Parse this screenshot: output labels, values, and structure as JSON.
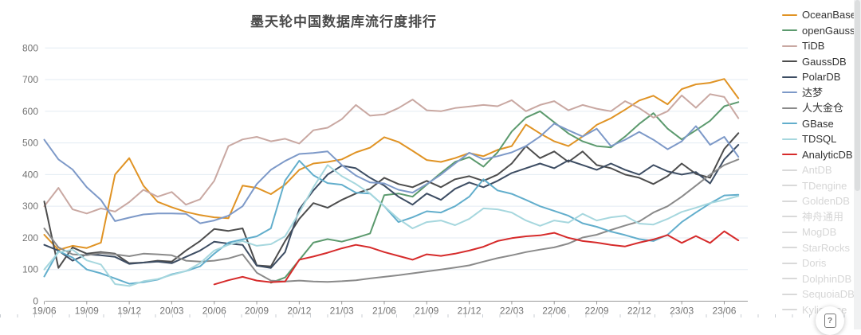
{
  "page": {
    "background": "#ffffff"
  },
  "axis": {
    "line_color": "#999999",
    "label_color": "#737373",
    "grid_color": "#e3ebf3"
  },
  "legend": {
    "disabled_color": "#d9d9d9",
    "active_text_color": "#333333",
    "disabled_text_color": "#d6d6d6"
  },
  "help_button": {
    "label": "?"
  },
  "chart_data": {
    "type": "line",
    "title": "墨天轮中国数据库流行度排行",
    "xlabel": "",
    "ylabel": "",
    "ylim": [
      0,
      800
    ],
    "y_ticks": [
      0,
      100,
      200,
      300,
      400,
      500,
      600,
      700,
      800
    ],
    "grid": true,
    "legend_position": "right",
    "x_tick_every": 3,
    "x_months": [
      "19/06",
      "19/07",
      "19/08",
      "19/09",
      "19/10",
      "19/11",
      "19/12",
      "20/01",
      "20/02",
      "20/03",
      "20/04",
      "20/05",
      "20/06",
      "20/07",
      "20/08",
      "20/09",
      "20/10",
      "20/11",
      "20/12",
      "21/01",
      "21/02",
      "21/03",
      "21/04",
      "21/05",
      "21/06",
      "21/07",
      "21/08",
      "21/09",
      "21/10",
      "21/11",
      "21/12",
      "22/01",
      "22/02",
      "22/03",
      "22/04",
      "22/05",
      "22/06",
      "22/07",
      "22/08",
      "22/09",
      "22/10",
      "22/11",
      "22/12",
      "23/01",
      "23/02",
      "23/03",
      "23/04",
      "23/05",
      "23/06",
      "23/07"
    ],
    "series": [
      {
        "name": "OceanBase",
        "color": "#e09324",
        "values": [
          210,
          162,
          175,
          168,
          185,
          400,
          452,
          365,
          314,
          297,
          282,
          272,
          265,
          262,
          365,
          358,
          338,
          368,
          415,
          435,
          440,
          448,
          470,
          485,
          518,
          503,
          475,
          446,
          440,
          452,
          468,
          458,
          478,
          490,
          558,
          530,
          505,
          490,
          520,
          557,
          578,
          605,
          634,
          649,
          622,
          670,
          685,
          690,
          702,
          641
        ]
      },
      {
        "name": "openGauss",
        "color": "#5c9a6e",
        "values": [
          null,
          null,
          null,
          null,
          null,
          null,
          null,
          null,
          null,
          null,
          null,
          null,
          null,
          null,
          null,
          null,
          58,
          75,
          130,
          185,
          196,
          188,
          200,
          214,
          335,
          340,
          330,
          368,
          405,
          440,
          455,
          425,
          470,
          536,
          580,
          600,
          565,
          530,
          505,
          490,
          486,
          520,
          560,
          594,
          545,
          511,
          540,
          570,
          616,
          629
        ]
      },
      {
        "name": "TiDB",
        "color": "#c9a8a2",
        "values": [
          300,
          358,
          290,
          277,
          293,
          283,
          313,
          352,
          330,
          345,
          305,
          322,
          380,
          490,
          511,
          519,
          505,
          513,
          498,
          540,
          548,
          575,
          620,
          586,
          590,
          610,
          637,
          603,
          600,
          610,
          615,
          620,
          616,
          635,
          600,
          620,
          632,
          603,
          620,
          608,
          600,
          632,
          610,
          580,
          600,
          650,
          611,
          654,
          645,
          578
        ]
      },
      {
        "name": "GaussDB",
        "color": "#4d4d4d",
        "values": [
          315,
          105,
          170,
          150,
          155,
          150,
          120,
          122,
          128,
          125,
          160,
          190,
          228,
          222,
          230,
          113,
          110,
          190,
          260,
          310,
          295,
          320,
          340,
          355,
          390,
          370,
          360,
          380,
          360,
          385,
          395,
          380,
          400,
          435,
          490,
          452,
          473,
          440,
          473,
          430,
          420,
          400,
          390,
          370,
          395,
          435,
          402,
          390,
          481,
          531
        ]
      },
      {
        "name": "PolarDB",
        "color": "#3d4d63",
        "values": [
          178,
          160,
          128,
          148,
          145,
          140,
          118,
          122,
          125,
          120,
          140,
          160,
          188,
          182,
          178,
          112,
          105,
          155,
          290,
          350,
          400,
          428,
          420,
          390,
          365,
          330,
          305,
          340,
          320,
          355,
          375,
          360,
          380,
          405,
          420,
          435,
          420,
          445,
          430,
          415,
          435,
          415,
          400,
          430,
          410,
          400,
          408,
          372,
          448,
          494
        ]
      },
      {
        "name": "达梦",
        "color": "#7d99c8",
        "values": [
          510,
          448,
          416,
          360,
          320,
          253,
          264,
          274,
          277,
          277,
          276,
          246,
          255,
          270,
          300,
          370,
          415,
          443,
          465,
          468,
          473,
          430,
          397,
          375,
          372,
          352,
          343,
          370,
          400,
          435,
          469,
          448,
          458,
          470,
          490,
          520,
          561,
          540,
          520,
          545,
          490,
          510,
          535,
          510,
          480,
          505,
          553,
          494,
          519,
          456
        ]
      },
      {
        "name": "人大金仓",
        "color": "#8a8a8a",
        "values": [
          230,
          170,
          148,
          145,
          152,
          148,
          142,
          150,
          148,
          145,
          128,
          125,
          128,
          135,
          148,
          90,
          65,
          62,
          65,
          62,
          61,
          63,
          66,
          72,
          77,
          82,
          88,
          94,
          100,
          106,
          113,
          125,
          136,
          145,
          155,
          163,
          170,
          182,
          201,
          210,
          225,
          239,
          252,
          280,
          300,
          330,
          365,
          400,
          430,
          448
        ]
      },
      {
        "name": "GBase",
        "color": "#62aecc",
        "values": [
          78,
          158,
          138,
          100,
          88,
          72,
          55,
          60,
          68,
          85,
          95,
          110,
          150,
          185,
          195,
          205,
          230,
          381,
          444,
          398,
          373,
          368,
          343,
          340,
          300,
          250,
          265,
          284,
          280,
          300,
          330,
          385,
          350,
          339,
          320,
          300,
          285,
          270,
          246,
          235,
          220,
          209,
          196,
          190,
          210,
          250,
          280,
          309,
          334,
          336
        ]
      },
      {
        "name": "TDSQL",
        "color": "#a6d7de",
        "values": [
          100,
          154,
          163,
          129,
          116,
          54,
          48,
          63,
          70,
          83,
          95,
          120,
          160,
          178,
          190,
          175,
          180,
          205,
          280,
          360,
          430,
          395,
          370,
          340,
          300,
          260,
          230,
          250,
          255,
          240,
          260,
          293,
          290,
          280,
          255,
          238,
          255,
          248,
          276,
          255,
          265,
          270,
          245,
          242,
          260,
          282,
          295,
          310,
          320,
          332
        ]
      },
      {
        "name": "AnalyticDB",
        "color": "#d62b2b",
        "values": [
          null,
          null,
          null,
          null,
          null,
          null,
          null,
          null,
          null,
          null,
          null,
          null,
          53,
          66,
          77,
          65,
          60,
          62,
          131,
          141,
          153,
          167,
          178,
          170,
          155,
          143,
          131,
          148,
          143,
          150,
          160,
          172,
          190,
          199,
          205,
          208,
          216,
          200,
          190,
          185,
          178,
          173,
          185,
          195,
          209,
          184,
          206,
          184,
          221,
          192
        ]
      }
    ],
    "disabled_series": [
      "AntDB",
      "TDengine",
      "GoldenDB",
      "神舟通用",
      "MogDB",
      "StarRocks",
      "Doris",
      "DolphinDB",
      "SequoiaDB",
      "Kyligence"
    ]
  }
}
